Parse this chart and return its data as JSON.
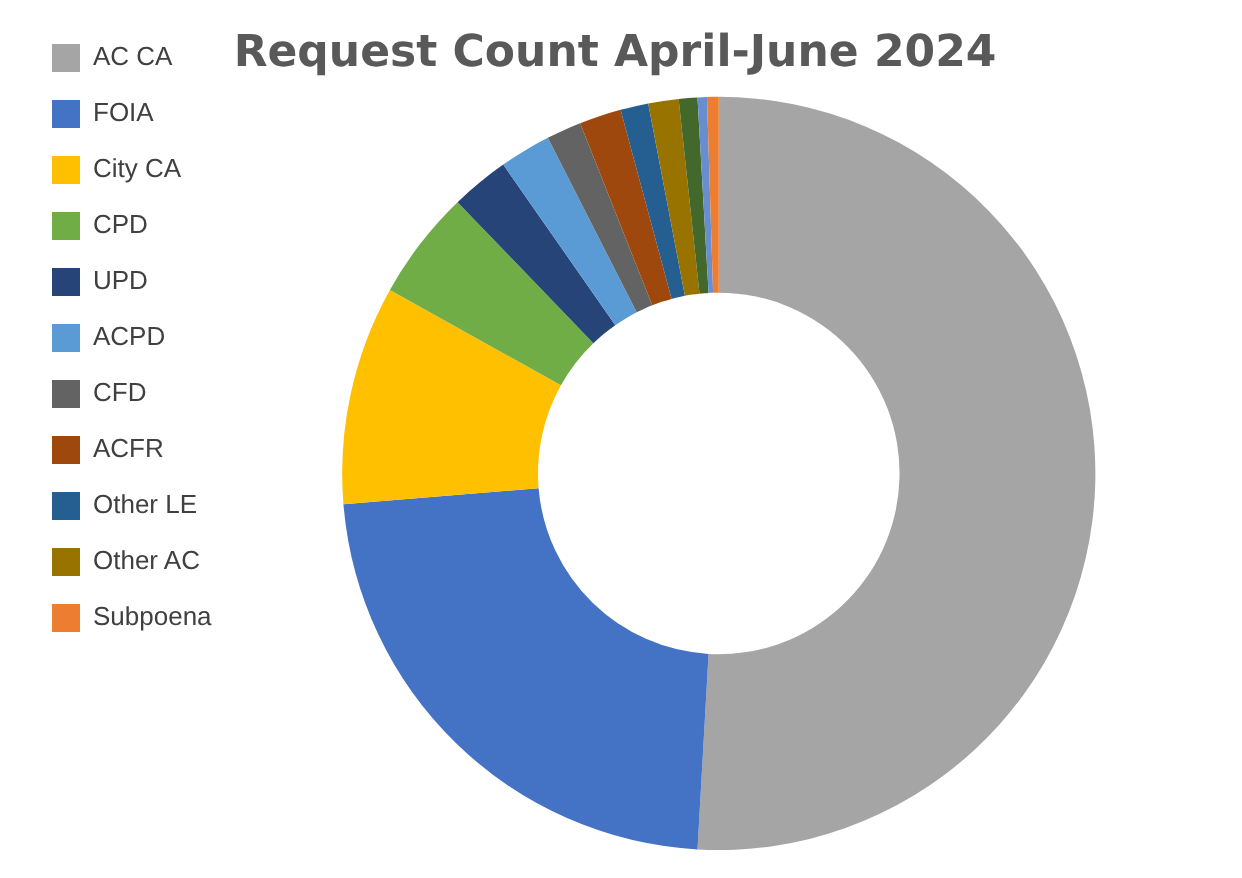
{
  "chart_data": {
    "type": "donut",
    "title": "Request Count April-June 2024",
    "legend": "left",
    "categories": [
      "AC CA",
      "FOIA",
      "City CA",
      "CPD",
      "UPD",
      "ACPD",
      "CFD",
      "ACFR",
      "Other LE",
      "Other AC",
      null,
      null,
      "Subpoena"
    ],
    "values": [
      50.9,
      22.8,
      9.4,
      4.7,
      2.5,
      2.2,
      1.5,
      1.8,
      1.2,
      1.3,
      0.8,
      0.4,
      0.5
    ],
    "colors": [
      "#a5a5a5",
      "#4472c4",
      "#ffc000",
      "#70ad47",
      "#264478",
      "#5b9bd5",
      "#636363",
      "#9e480e",
      "#255e91",
      "#997300",
      "#43682b",
      "#698ed0",
      "#ed7d31"
    ]
  }
}
